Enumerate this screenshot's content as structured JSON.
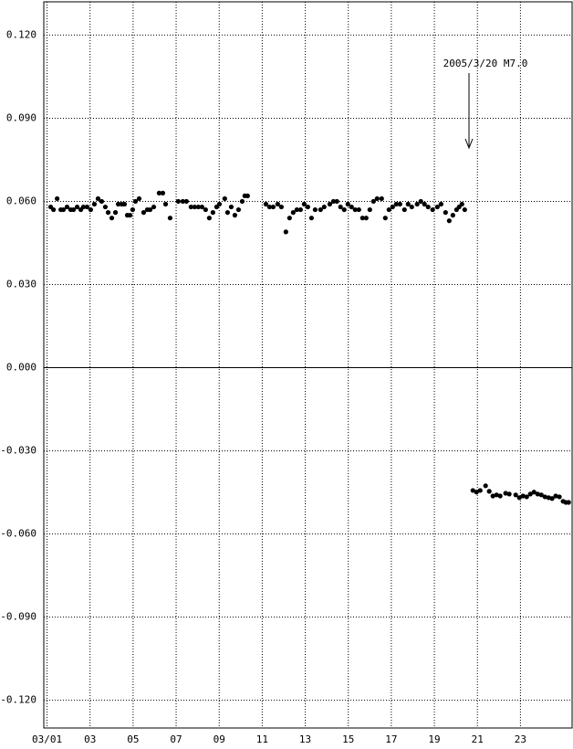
{
  "chart_data": {
    "type": "scatter",
    "annotation": "2005/3/20 M7.0",
    "color": "#000000",
    "grid": true,
    "xlim": [
      0.85,
      25.4
    ],
    "ylim": [
      -0.13,
      0.132
    ],
    "xticks": [
      {
        "value": 1,
        "label": "03/01"
      },
      {
        "value": 3,
        "label": "03"
      },
      {
        "value": 5,
        "label": "05"
      },
      {
        "value": 7,
        "label": "07"
      },
      {
        "value": 9,
        "label": "09"
      },
      {
        "value": 11,
        "label": "11"
      },
      {
        "value": 13,
        "label": "13"
      },
      {
        "value": 15,
        "label": "15"
      },
      {
        "value": 17,
        "label": "17"
      },
      {
        "value": 19,
        "label": "19"
      },
      {
        "value": 21,
        "label": "21"
      },
      {
        "value": 23,
        "label": "23"
      }
    ],
    "yticks": [
      {
        "value": 0.12,
        "label": "0.120"
      },
      {
        "value": 0.09,
        "label": "0.090"
      },
      {
        "value": 0.06,
        "label": "0.060"
      },
      {
        "value": 0.03,
        "label": "0.030"
      },
      {
        "value": 0,
        "label": "0.000"
      },
      {
        "value": -0.03,
        "label": "-0.030"
      },
      {
        "value": -0.06,
        "label": "-0.060"
      },
      {
        "value": -0.09,
        "label": "-0.090"
      },
      {
        "value": -0.12,
        "label": "-0.120"
      }
    ],
    "x": [
      1.17,
      1.3,
      1.47,
      1.64,
      1.76,
      1.93,
      2.1,
      2.23,
      2.4,
      2.57,
      2.69,
      2.86,
      3.03,
      3.2,
      3.37,
      3.54,
      3.71,
      3.84,
      4.01,
      4.18,
      4.31,
      4.47,
      4.6,
      4.73,
      4.86,
      4.98,
      5.11,
      5.28,
      5.49,
      5.66,
      5.79,
      5.96,
      6.21,
      6.38,
      6.51,
      6.72,
      7.1,
      7.31,
      7.48,
      7.69,
      7.86,
      8.03,
      8.2,
      8.37,
      8.54,
      8.71,
      8.88,
      9.01,
      9.26,
      9.39,
      9.56,
      9.73,
      9.9,
      10.07,
      10.19,
      10.32,
      11.17,
      11.34,
      11.51,
      11.72,
      11.89,
      12.1,
      12.27,
      12.44,
      12.61,
      12.78,
      12.95,
      13.12,
      13.29,
      13.46,
      13.71,
      13.88,
      14.14,
      14.31,
      14.47,
      14.64,
      14.81,
      14.98,
      15.15,
      15.32,
      15.49,
      15.66,
      15.83,
      16.0,
      16.17,
      16.34,
      16.55,
      16.72,
      16.89,
      17.06,
      17.23,
      17.4,
      17.61,
      17.78,
      17.95,
      18.2,
      18.37,
      18.54,
      18.71,
      18.92,
      19.14,
      19.31,
      19.52,
      19.69,
      19.86,
      20.03,
      20.15,
      20.28,
      20.41,
      20.79,
      20.96,
      21.13,
      21.38,
      21.55,
      21.72,
      21.89,
      22.06,
      22.31,
      22.48,
      22.78,
      22.95,
      23.12,
      23.29,
      23.46,
      23.63,
      23.8,
      23.97,
      24.14,
      24.31,
      24.47,
      24.64,
      24.81,
      24.98,
      25.11,
      25.24
    ],
    "values": [
      0.058,
      0.057,
      0.061,
      0.057,
      0.057,
      0.058,
      0.057,
      0.057,
      0.058,
      0.057,
      0.058,
      0.058,
      0.057,
      0.059,
      0.061,
      0.06,
      0.058,
      0.056,
      0.054,
      0.056,
      0.059,
      0.059,
      0.059,
      0.055,
      0.055,
      0.057,
      0.06,
      0.061,
      0.056,
      0.057,
      0.057,
      0.058,
      0.063,
      0.063,
      0.059,
      0.054,
      0.06,
      0.06,
      0.06,
      0.058,
      0.058,
      0.058,
      0.058,
      0.057,
      0.054,
      0.056,
      0.058,
      0.059,
      0.061,
      0.056,
      0.058,
      0.055,
      0.057,
      0.06,
      0.062,
      0.062,
      0.059,
      0.058,
      0.058,
      0.059,
      0.058,
      0.049,
      0.054,
      0.056,
      0.057,
      0.057,
      0.059,
      0.058,
      0.054,
      0.057,
      0.057,
      0.058,
      0.059,
      0.06,
      0.06,
      0.058,
      0.057,
      0.059,
      0.058,
      0.057,
      0.057,
      0.054,
      0.054,
      0.057,
      0.06,
      0.061,
      0.061,
      0.054,
      0.057,
      0.058,
      0.059,
      0.059,
      0.057,
      0.059,
      0.058,
      0.059,
      0.06,
      0.059,
      0.058,
      0.057,
      0.058,
      0.059,
      0.056,
      0.053,
      0.055,
      0.057,
      0.058,
      0.059,
      0.057,
      -0.0443,
      -0.0449,
      -0.0443,
      -0.0426,
      -0.0446,
      -0.0463,
      -0.0459,
      -0.0463,
      -0.0453,
      -0.0456,
      -0.0459,
      -0.0469,
      -0.0463,
      -0.0466,
      -0.0456,
      -0.0449,
      -0.0456,
      -0.0459,
      -0.0466,
      -0.0469,
      -0.0472,
      -0.0463,
      -0.0466,
      -0.0482,
      -0.0486,
      -0.0486
    ]
  }
}
